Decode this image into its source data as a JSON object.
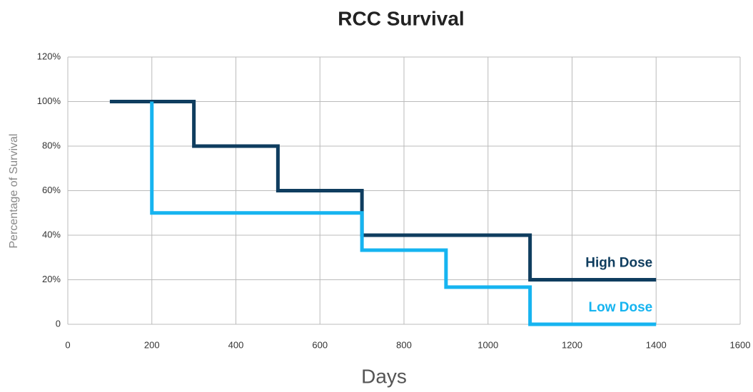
{
  "chart_data": {
    "type": "line",
    "title": "RCC Survival",
    "xlabel": "Days",
    "ylabel": "Percentage of Survival",
    "xlim": [
      0,
      1600
    ],
    "xticks": [
      0,
      200,
      400,
      600,
      800,
      1000,
      1200,
      1400,
      1600
    ],
    "ylim": [
      0,
      120
    ],
    "yticks": [
      0,
      {
        "value": 20,
        "label": "20%"
      },
      {
        "value": 40,
        "label": "40%"
      },
      {
        "value": 60,
        "label": "60%"
      },
      {
        "value": 80,
        "label": "80%"
      },
      {
        "value": 100,
        "label": "100%"
      },
      {
        "value": 120,
        "label": "120%"
      }
    ],
    "grid": true,
    "series": [
      {
        "name": "High Dose",
        "color": "#0f3d5f",
        "x": [
          100,
          300,
          300,
          500,
          500,
          700,
          700,
          1100,
          1100,
          1400
        ],
        "values": [
          100,
          100,
          80,
          80,
          60,
          60,
          40,
          40,
          20,
          20
        ]
      },
      {
        "name": "Low Dose",
        "color": "#16b4f0",
        "x": [
          200,
          200,
          700,
          700,
          900,
          900,
          1100,
          1100,
          1400
        ],
        "values": [
          100,
          50,
          50,
          33.3,
          33.3,
          16.7,
          16.7,
          0,
          0
        ]
      }
    ]
  }
}
